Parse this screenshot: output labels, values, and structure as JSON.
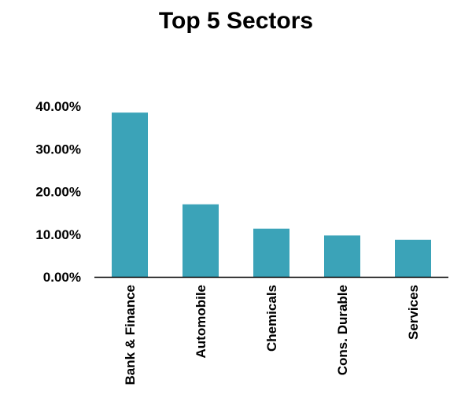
{
  "chart_data": {
    "type": "bar",
    "title": "Top 5 Sectors",
    "categories": [
      "Bank & Finance",
      "Automobile",
      "Chemicals",
      "Cons. Durable",
      "Services"
    ],
    "values": [
      38.5,
      17.0,
      11.3,
      9.7,
      8.7
    ],
    "ylim": [
      0,
      40
    ],
    "yticks": [
      0,
      10,
      20,
      30,
      40
    ],
    "ytick_labels": [
      "0.00%",
      "10.00%",
      "20.00%",
      "30.00%",
      "40.00%"
    ],
    "xlabel": "",
    "ylabel": "",
    "grid": false,
    "legend": "none",
    "bar_color": "#3BA3B8",
    "axis_color": "#000000"
  }
}
